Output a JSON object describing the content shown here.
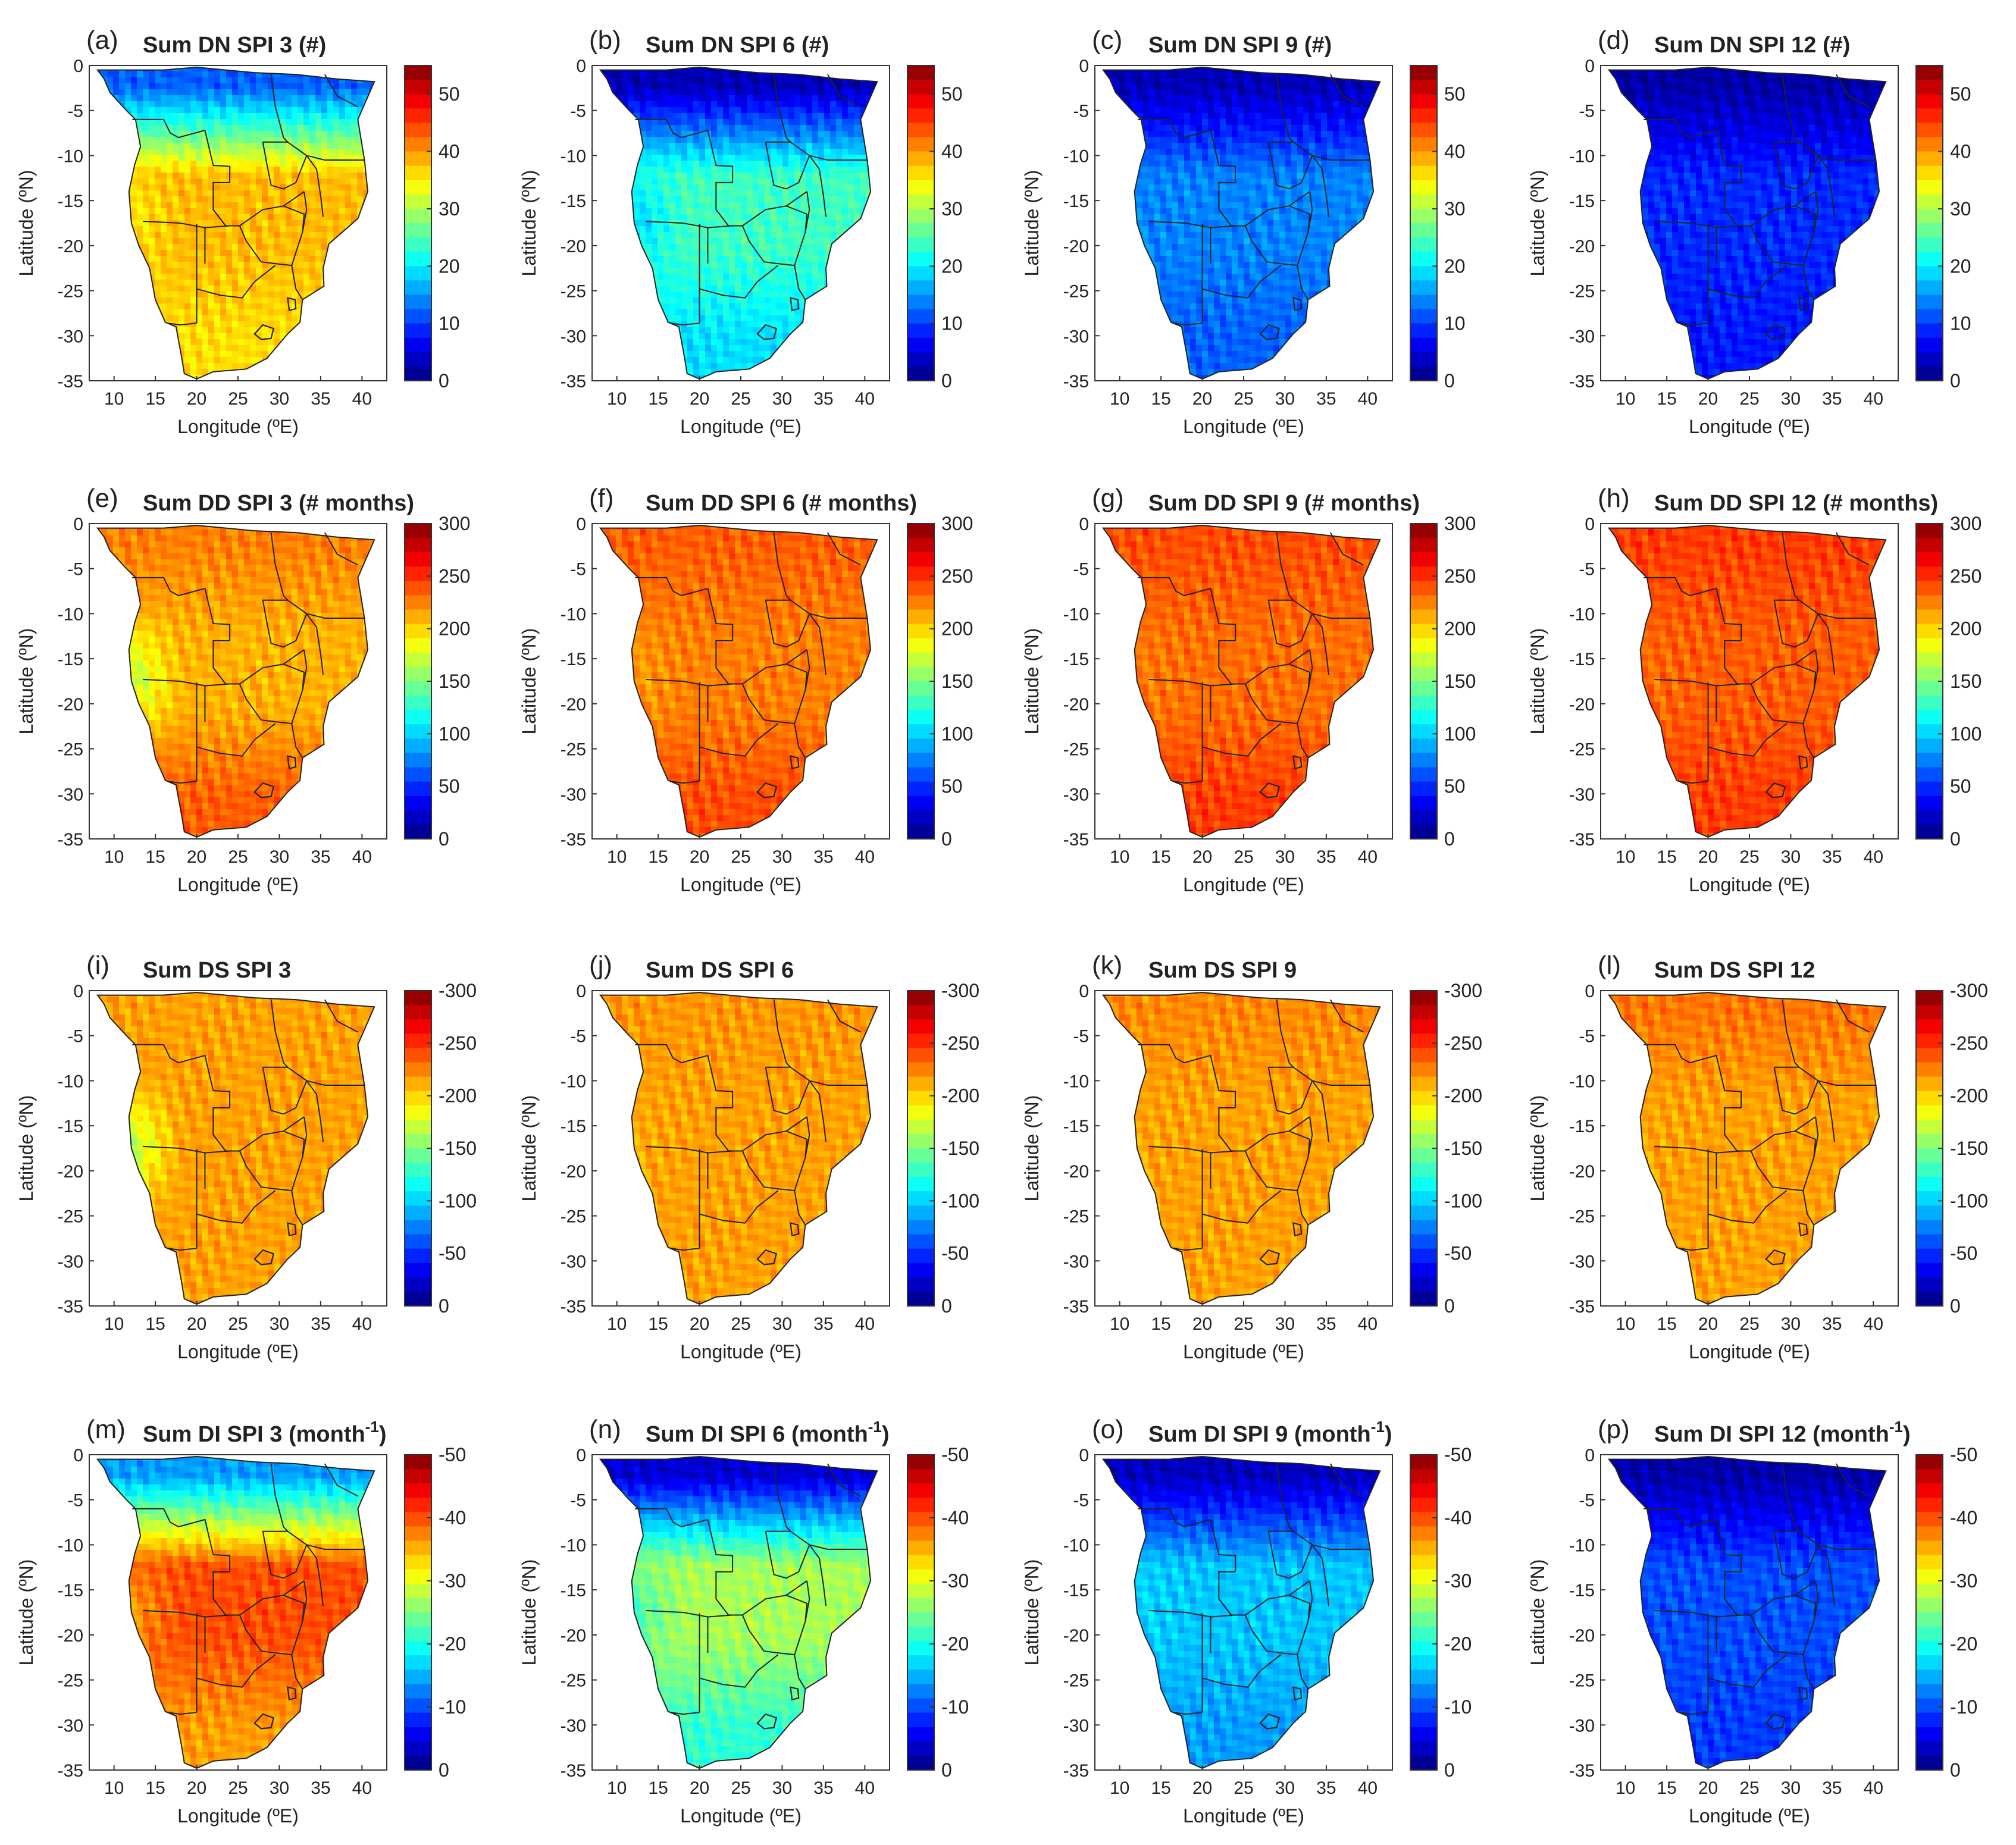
{
  "figure_type": "multi-panel map grid",
  "chart_data": [
    {
      "type": "heatmap",
      "panel_label": "(a)",
      "title": "Sum DN SPI 3 (#)",
      "xlabel": "Longitude (ºE)",
      "ylabel": "Latitude (ºN)",
      "xticks": [
        "10",
        "15",
        "20",
        "25",
        "30",
        "35",
        "40"
      ],
      "yticks": [
        "0",
        "-5",
        "-10",
        "-15",
        "-20",
        "-25",
        "-30",
        "-35"
      ],
      "xlim": [
        7,
        43
      ],
      "ylim": [
        -35,
        0
      ],
      "colorbar": {
        "ticks": [
          "0",
          "10",
          "20",
          "30",
          "40",
          "50"
        ],
        "range": [
          0,
          55
        ],
        "reversed": false
      },
      "pattern": {
        "north": 12,
        "center": 38,
        "south": 36,
        "southwest": 35
      }
    },
    {
      "type": "heatmap",
      "panel_label": "(b)",
      "title": "Sum DN SPI 6 (#)",
      "xlabel": "Longitude (ºE)",
      "ylabel": "Latitude (ºN)",
      "xticks": [
        "10",
        "15",
        "20",
        "25",
        "30",
        "35",
        "40"
      ],
      "yticks": [
        "0",
        "-5",
        "-10",
        "-15",
        "-20",
        "-25",
        "-30",
        "-35"
      ],
      "xlim": [
        7,
        43
      ],
      "ylim": [
        -35,
        0
      ],
      "colorbar": {
        "ticks": [
          "0",
          "10",
          "20",
          "30",
          "40",
          "50"
        ],
        "range": [
          0,
          55
        ],
        "reversed": false
      },
      "pattern": {
        "north": 3,
        "center": 24,
        "south": 19,
        "southwest": 18
      }
    },
    {
      "type": "heatmap",
      "panel_label": "(c)",
      "title": "Sum DN SPI 9 (#)",
      "xlabel": "Longitude (ºE)",
      "ylabel": "Latitude (ºN)",
      "xticks": [
        "10",
        "15",
        "20",
        "25",
        "30",
        "35",
        "40"
      ],
      "yticks": [
        "0",
        "-5",
        "-10",
        "-15",
        "-20",
        "-25",
        "-30",
        "-35"
      ],
      "xlim": [
        7,
        43
      ],
      "ylim": [
        -35,
        0
      ],
      "colorbar": {
        "ticks": [
          "0",
          "10",
          "20",
          "30",
          "40",
          "50"
        ],
        "range": [
          0,
          55
        ],
        "reversed": false
      },
      "pattern": {
        "north": 3,
        "center": 14,
        "south": 12,
        "southwest": 14
      }
    },
    {
      "type": "heatmap",
      "panel_label": "(d)",
      "title": "Sum DN SPI 12 (#)",
      "xlabel": "Longitude (ºE)",
      "ylabel": "Latitude (ºN)",
      "xticks": [
        "10",
        "15",
        "20",
        "25",
        "30",
        "35",
        "40"
      ],
      "yticks": [
        "0",
        "-5",
        "-10",
        "-15",
        "-20",
        "-25",
        "-30",
        "-35"
      ],
      "xlim": [
        7,
        43
      ],
      "ylim": [
        -35,
        0
      ],
      "colorbar": {
        "ticks": [
          "0",
          "10",
          "20",
          "30",
          "40",
          "50"
        ],
        "range": [
          0,
          55
        ],
        "reversed": false
      },
      "pattern": {
        "north": 2,
        "center": 9,
        "south": 8,
        "southwest": 9
      }
    },
    {
      "type": "heatmap",
      "panel_label": "(e)",
      "title": "Sum DD SPI 3 (# months)",
      "xlabel": "Longitude (ºE)",
      "ylabel": "Latitude (ºN)",
      "xticks": [
        "10",
        "15",
        "20",
        "25",
        "30",
        "35",
        "40"
      ],
      "yticks": [
        "0",
        "-5",
        "-10",
        "-15",
        "-20",
        "-25",
        "-30",
        "-35"
      ],
      "xlim": [
        7,
        43
      ],
      "ylim": [
        -35,
        0
      ],
      "colorbar": {
        "ticks": [
          "0",
          "50",
          "100",
          "150",
          "200",
          "250",
          "300"
        ],
        "range": [
          0,
          300
        ],
        "reversed": false
      },
      "pattern": {
        "north": 225,
        "center": 210,
        "south": 235,
        "southwest": 165
      }
    },
    {
      "type": "heatmap",
      "panel_label": "(f)",
      "title": "Sum DD SPI 6 (# months)",
      "xlabel": "Longitude (ºE)",
      "ylabel": "Latitude (ºN)",
      "xticks": [
        "10",
        "15",
        "20",
        "25",
        "30",
        "35",
        "40"
      ],
      "yticks": [
        "0",
        "-5",
        "-10",
        "-15",
        "-20",
        "-25",
        "-30",
        "-35"
      ],
      "xlim": [
        7,
        43
      ],
      "ylim": [
        -35,
        0
      ],
      "colorbar": {
        "ticks": [
          "0",
          "50",
          "100",
          "150",
          "200",
          "250",
          "300"
        ],
        "range": [
          0,
          300
        ],
        "reversed": false
      },
      "pattern": {
        "north": 235,
        "center": 225,
        "south": 240,
        "southwest": 215
      }
    },
    {
      "type": "heatmap",
      "panel_label": "(g)",
      "title": "Sum DD SPI 9 (# months)",
      "xlabel": "Longitude (ºE)",
      "ylabel": "Latitude (ºN)",
      "xticks": [
        "10",
        "15",
        "20",
        "25",
        "30",
        "35",
        "40"
      ],
      "yticks": [
        "0",
        "-5",
        "-10",
        "-15",
        "-20",
        "-25",
        "-30",
        "-35"
      ],
      "xlim": [
        7,
        43
      ],
      "ylim": [
        -35,
        0
      ],
      "colorbar": {
        "ticks": [
          "0",
          "50",
          "100",
          "150",
          "200",
          "250",
          "300"
        ],
        "range": [
          0,
          300
        ],
        "reversed": false
      },
      "pattern": {
        "north": 240,
        "center": 230,
        "south": 245,
        "southwest": 225
      }
    },
    {
      "type": "heatmap",
      "panel_label": "(h)",
      "title": "Sum DD SPI 12 (# months)",
      "xlabel": "Longitude (ºE)",
      "ylabel": "Latitude (ºN)",
      "xticks": [
        "10",
        "15",
        "20",
        "25",
        "30",
        "35",
        "40"
      ],
      "yticks": [
        "0",
        "-5",
        "-10",
        "-15",
        "-20",
        "-25",
        "-30",
        "-35"
      ],
      "xlim": [
        7,
        43
      ],
      "ylim": [
        -35,
        0
      ],
      "colorbar": {
        "ticks": [
          "0",
          "50",
          "100",
          "150",
          "200",
          "250",
          "300"
        ],
        "range": [
          0,
          300
        ],
        "reversed": false
      },
      "pattern": {
        "north": 245,
        "center": 235,
        "south": 245,
        "southwest": 230
      }
    },
    {
      "type": "heatmap",
      "panel_label": "(i)",
      "title": "Sum DS SPI 3",
      "xlabel": "Longitude (ºE)",
      "ylabel": "Latitude (ºN)",
      "xticks": [
        "10",
        "15",
        "20",
        "25",
        "30",
        "35",
        "40"
      ],
      "yticks": [
        "0",
        "-5",
        "-10",
        "-15",
        "-20",
        "-25",
        "-30",
        "-35"
      ],
      "xlim": [
        7,
        43
      ],
      "ylim": [
        -35,
        0
      ],
      "colorbar": {
        "ticks": [
          "0",
          "-50",
          "-100",
          "-150",
          "-200",
          "-250",
          "-300"
        ],
        "range": [
          -300,
          0
        ],
        "reversed": true
      },
      "pattern": {
        "north": -215,
        "center": -215,
        "south": -215,
        "southwest": -165
      }
    },
    {
      "type": "heatmap",
      "panel_label": "(j)",
      "title": "Sum DS SPI 6",
      "xlabel": "Longitude (ºE)",
      "ylabel": "Latitude (ºN)",
      "xticks": [
        "10",
        "15",
        "20",
        "25",
        "30",
        "35",
        "40"
      ],
      "yticks": [
        "0",
        "-5",
        "-10",
        "-15",
        "-20",
        "-25",
        "-30",
        "-35"
      ],
      "xlim": [
        7,
        43
      ],
      "ylim": [
        -35,
        0
      ],
      "colorbar": {
        "ticks": [
          "0",
          "-50",
          "-100",
          "-150",
          "-200",
          "-250",
          "-300"
        ],
        "range": [
          -300,
          0
        ],
        "reversed": true
      },
      "pattern": {
        "north": -218,
        "center": -215,
        "south": -215,
        "southwest": -212
      }
    },
    {
      "type": "heatmap",
      "panel_label": "(k)",
      "title": "Sum DS SPI 9",
      "xlabel": "Longitude (ºE)",
      "ylabel": "Latitude (ºN)",
      "xticks": [
        "10",
        "15",
        "20",
        "25",
        "30",
        "35",
        "40"
      ],
      "yticks": [
        "0",
        "-5",
        "-10",
        "-15",
        "-20",
        "-25",
        "-30",
        "-35"
      ],
      "xlim": [
        7,
        43
      ],
      "ylim": [
        -35,
        0
      ],
      "colorbar": {
        "ticks": [
          "0",
          "-50",
          "-100",
          "-150",
          "-200",
          "-250",
          "-300"
        ],
        "range": [
          -300,
          0
        ],
        "reversed": true
      },
      "pattern": {
        "north": -222,
        "center": -215,
        "south": -215,
        "southwest": -214
      }
    },
    {
      "type": "heatmap",
      "panel_label": "(l)",
      "title": "Sum DS SPI 12",
      "xlabel": "Longitude (ºE)",
      "ylabel": "Latitude (ºN)",
      "xticks": [
        "10",
        "15",
        "20",
        "25",
        "30",
        "35",
        "40"
      ],
      "yticks": [
        "0",
        "-5",
        "-10",
        "-15",
        "-20",
        "-25",
        "-30",
        "-35"
      ],
      "xlim": [
        7,
        43
      ],
      "ylim": [
        -35,
        0
      ],
      "colorbar": {
        "ticks": [
          "0",
          "-50",
          "-100",
          "-150",
          "-200",
          "-250",
          "-300"
        ],
        "range": [
          -300,
          0
        ],
        "reversed": true
      },
      "pattern": {
        "north": -228,
        "center": -215,
        "south": -215,
        "southwest": -214
      }
    },
    {
      "type": "heatmap",
      "panel_label": "(m)",
      "title": "Sum DI SPI 3 (month",
      "title_sup": "-1",
      "title_end": ")",
      "xlabel": "Longitude (ºE)",
      "ylabel": "Latitude (ºN)",
      "xticks": [
        "10",
        "15",
        "20",
        "25",
        "30",
        "35",
        "40"
      ],
      "yticks": [
        "0",
        "-5",
        "-10",
        "-15",
        "-20",
        "-25",
        "-30",
        "-35"
      ],
      "xlim": [
        7,
        43
      ],
      "ylim": [
        -35,
        0
      ],
      "colorbar": {
        "ticks": [
          "0",
          "-10",
          "-20",
          "-30",
          "-40",
          "-50"
        ],
        "range": [
          -50,
          0
        ],
        "reversed": true
      },
      "pattern": {
        "north": -14,
        "center": -40,
        "south": -36,
        "southwest": -36
      }
    },
    {
      "type": "heatmap",
      "panel_label": "(n)",
      "title": "Sum DI SPI 6 (month",
      "title_sup": "-1",
      "title_end": ")",
      "xlabel": "Longitude (ºE)",
      "ylabel": "Latitude (ºN)",
      "xticks": [
        "10",
        "15",
        "20",
        "25",
        "30",
        "35",
        "40"
      ],
      "yticks": [
        "0",
        "-5",
        "-10",
        "-15",
        "-20",
        "-25",
        "-30",
        "-35"
      ],
      "xlim": [
        7,
        43
      ],
      "ylim": [
        -35,
        0
      ],
      "colorbar": {
        "ticks": [
          "0",
          "-10",
          "-20",
          "-30",
          "-40",
          "-50"
        ],
        "range": [
          -50,
          0
        ],
        "reversed": true
      },
      "pattern": {
        "north": -4,
        "center": -27,
        "south": -21,
        "southwest": -22
      }
    },
    {
      "type": "heatmap",
      "panel_label": "(o)",
      "title": "Sum DI SPI 9 (month",
      "title_sup": "-1",
      "title_end": ")",
      "xlabel": "Longitude (ºE)",
      "ylabel": "Latitude (ºN)",
      "xticks": [
        "10",
        "15",
        "20",
        "25",
        "30",
        "35",
        "40"
      ],
      "yticks": [
        "0",
        "-5",
        "-10",
        "-15",
        "-20",
        "-25",
        "-30",
        "-35"
      ],
      "xlim": [
        7,
        43
      ],
      "ylim": [
        -35,
        0
      ],
      "colorbar": {
        "ticks": [
          "0",
          "-10",
          "-20",
          "-30",
          "-40",
          "-50"
        ],
        "range": [
          -50,
          0
        ],
        "reversed": true
      },
      "pattern": {
        "north": -3,
        "center": -16,
        "south": -14,
        "southwest": -17
      }
    },
    {
      "type": "heatmap",
      "panel_label": "(p)",
      "title": "Sum DI SPI 12 (month",
      "title_sup": "-1",
      "title_end": ")",
      "xlabel": "Longitude (ºE)",
      "ylabel": "Latitude (ºN)",
      "xticks": [
        "10",
        "15",
        "20",
        "25",
        "30",
        "35",
        "40"
      ],
      "yticks": [
        "0",
        "-5",
        "-10",
        "-15",
        "-20",
        "-25",
        "-30",
        "-35"
      ],
      "xlim": [
        7,
        43
      ],
      "ylim": [
        -35,
        0
      ],
      "colorbar": {
        "ticks": [
          "0",
          "-10",
          "-20",
          "-30",
          "-40",
          "-50"
        ],
        "range": [
          -50,
          0
        ],
        "reversed": true
      },
      "pattern": {
        "north": -2,
        "center": -10,
        "south": -9,
        "southwest": -10
      }
    }
  ],
  "map_outline": [
    [
      8,
      -0.5
    ],
    [
      16,
      -0.5
    ],
    [
      20,
      -0.2
    ],
    [
      27,
      -0.8
    ],
    [
      32,
      -1
    ],
    [
      37,
      -1.5
    ],
    [
      41.5,
      -1.8
    ],
    [
      39.5,
      -6
    ],
    [
      40.3,
      -10.5
    ],
    [
      40.7,
      -14
    ],
    [
      39.5,
      -17
    ],
    [
      36,
      -19.8
    ],
    [
      35.3,
      -22.5
    ],
    [
      35.4,
      -24.5
    ],
    [
      32.8,
      -26
    ],
    [
      32.5,
      -28.5
    ],
    [
      31,
      -29.8
    ],
    [
      28.5,
      -32.5
    ],
    [
      26,
      -33.7
    ],
    [
      22,
      -34
    ],
    [
      20,
      -34.8
    ],
    [
      18.5,
      -34.2
    ],
    [
      18.2,
      -32.5
    ],
    [
      17.5,
      -29
    ],
    [
      16.2,
      -28.5
    ],
    [
      15,
      -26
    ],
    [
      14.3,
      -22.5
    ],
    [
      13,
      -20
    ],
    [
      12.1,
      -17.5
    ],
    [
      11.8,
      -14
    ],
    [
      12.5,
      -11
    ],
    [
      13.2,
      -9
    ],
    [
      12.6,
      -6
    ],
    [
      11.5,
      -5
    ],
    [
      9.5,
      -3
    ],
    [
      8.8,
      -1.5
    ]
  ],
  "borders": [
    [
      [
        12.2,
        -6
      ],
      [
        16,
        -6
      ],
      [
        16.8,
        -7.5
      ],
      [
        17.8,
        -8
      ],
      [
        21,
        -7.2
      ],
      [
        22,
        -11.1
      ],
      [
        24,
        -11.2
      ],
      [
        24,
        -13
      ]
    ],
    [
      [
        13.5,
        -17.3
      ],
      [
        18,
        -17.5
      ],
      [
        21,
        -18
      ],
      [
        24,
        -17.8
      ],
      [
        25.2,
        -17.8
      ]
    ],
    [
      [
        20,
        -17.6
      ],
      [
        20,
        -22
      ],
      [
        20,
        -24.8
      ],
      [
        20,
        -28.6
      ]
    ],
    [
      [
        21,
        -18
      ],
      [
        21,
        -22
      ]
    ],
    [
      [
        24,
        -13
      ],
      [
        22,
        -13
      ],
      [
        22,
        -16
      ],
      [
        23.5,
        -17.8
      ],
      [
        25.2,
        -17.8
      ],
      [
        28,
        -16
      ],
      [
        30.5,
        -15.6
      ],
      [
        33,
        -14
      ]
    ],
    [
      [
        25.2,
        -17.8
      ],
      [
        26,
        -19.5
      ],
      [
        27.8,
        -21.8
      ],
      [
        29.5,
        -22
      ],
      [
        31.5,
        -22.2
      ],
      [
        32.8,
        -18.5
      ],
      [
        33,
        -16.5
      ],
      [
        30.5,
        -15.6
      ]
    ],
    [
      [
        28,
        -8.5
      ],
      [
        28.5,
        -11
      ],
      [
        29,
        -13.3
      ],
      [
        30.5,
        -13.7
      ],
      [
        32,
        -13
      ],
      [
        33.3,
        -10
      ],
      [
        31,
        -8.5
      ],
      [
        28,
        -8.5
      ]
    ],
    [
      [
        33.3,
        -10
      ],
      [
        34.5,
        -11.5
      ],
      [
        35,
        -14.5
      ],
      [
        35.3,
        -16.8
      ]
    ],
    [
      [
        33,
        -14
      ],
      [
        33.3,
        -16
      ],
      [
        32.8,
        -18.5
      ]
    ],
    [
      [
        29,
        -1
      ],
      [
        29.5,
        -4.5
      ],
      [
        30.5,
        -8
      ],
      [
        31,
        -8.5
      ]
    ],
    [
      [
        33.3,
        -10
      ],
      [
        35.5,
        -10.5
      ],
      [
        40.3,
        -10.5
      ]
    ],
    [
      [
        20,
        -24.8
      ],
      [
        22.8,
        -25.5
      ],
      [
        25.5,
        -25.8
      ],
      [
        27,
        -24
      ],
      [
        29.5,
        -22.2
      ]
    ],
    [
      [
        31.5,
        -22.2
      ],
      [
        32,
        -24.8
      ],
      [
        32.8,
        -26
      ]
    ],
    [
      [
        20,
        -28.6
      ],
      [
        18,
        -28.8
      ],
      [
        16.5,
        -28.6
      ]
    ],
    [
      [
        35.5,
        -1
      ],
      [
        37,
        -3.4
      ],
      [
        39.5,
        -4.6
      ]
    ]
  ],
  "lesotho": [
    [
      27,
      -29.8
    ],
    [
      28,
      -28.8
    ],
    [
      29.3,
      -29.2
    ],
    [
      29,
      -30.3
    ],
    [
      27.8,
      -30.4
    ],
    [
      27,
      -29.8
    ]
  ],
  "eswatini": [
    [
      31,
      -25.8
    ],
    [
      31.9,
      -26
    ],
    [
      32,
      -27
    ],
    [
      31.2,
      -27.2
    ],
    [
      31,
      -25.8
    ]
  ]
}
